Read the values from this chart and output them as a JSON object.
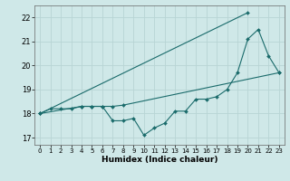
{
  "title": "",
  "xlabel": "Humidex (Indice chaleur)",
  "ylabel": "",
  "xlim": [
    -0.5,
    23.5
  ],
  "ylim": [
    16.7,
    22.5
  ],
  "yticks": [
    17,
    18,
    19,
    20,
    21,
    22
  ],
  "xticks": [
    0,
    1,
    2,
    3,
    4,
    5,
    6,
    7,
    8,
    9,
    10,
    11,
    12,
    13,
    14,
    15,
    16,
    17,
    18,
    19,
    20,
    21,
    22,
    23
  ],
  "bg_color": "#cfe8e8",
  "grid_color": "#b8d4d4",
  "line_color": "#1a6b6b",
  "line1_x": [
    0,
    1,
    2,
    3,
    4,
    5,
    6,
    7,
    8,
    9,
    10,
    11,
    12,
    13,
    14,
    15,
    16,
    17,
    18,
    19,
    20,
    21,
    22,
    23
  ],
  "line1_y": [
    18.0,
    18.2,
    18.2,
    18.2,
    18.3,
    18.3,
    18.3,
    17.7,
    17.7,
    17.8,
    17.1,
    17.4,
    17.6,
    18.1,
    18.1,
    18.6,
    18.6,
    18.7,
    19.0,
    19.7,
    21.1,
    21.5,
    20.4,
    19.7
  ],
  "line2_x": [
    0,
    4,
    5,
    6,
    7,
    8,
    23
  ],
  "line2_y": [
    18.0,
    18.3,
    18.3,
    18.3,
    18.3,
    18.35,
    19.7
  ],
  "line3_x": [
    0,
    20
  ],
  "line3_y": [
    18.0,
    22.2
  ]
}
